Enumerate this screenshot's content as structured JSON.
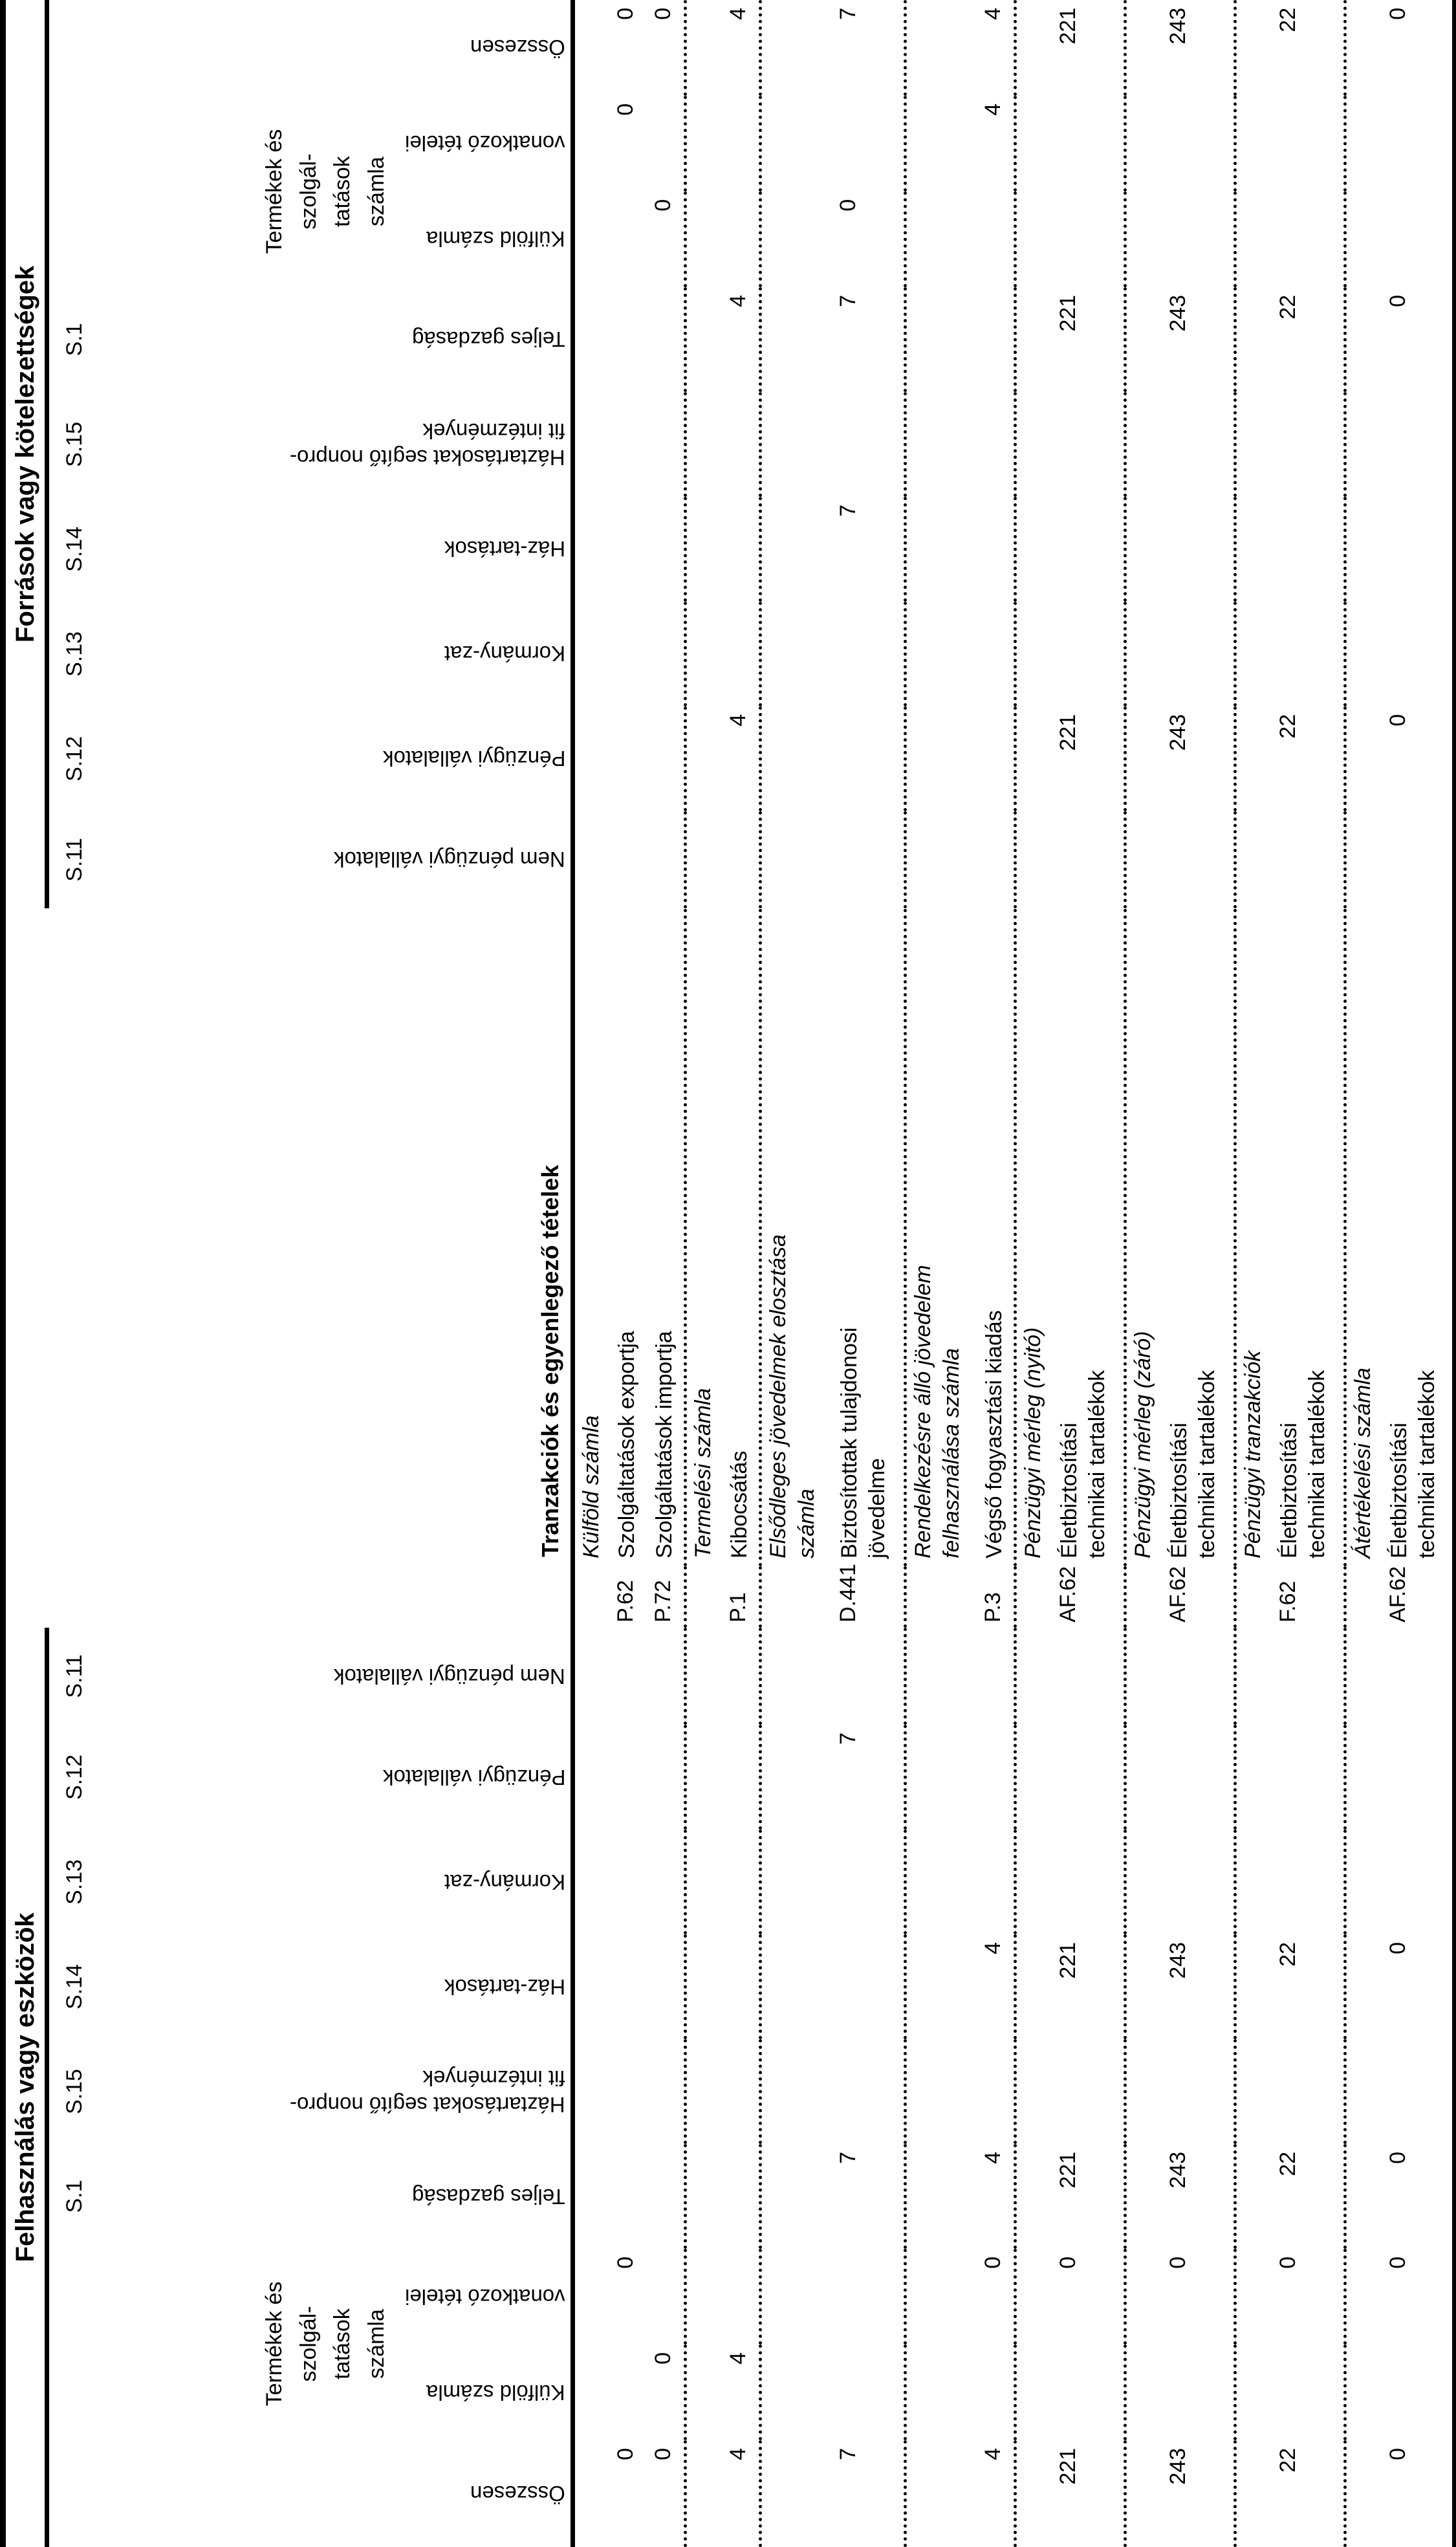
{
  "titles": {
    "uses": "Felhasználás vagy eszközök",
    "resources": "Források vagy kötelezettségek",
    "transactions": "Tranzakciók és egyenlegező tételek"
  },
  "product_account_block": "Termékek és\nszolgál-\ntatások\nszámla",
  "columns": {
    "uses_codes": [
      "",
      "",
      "",
      "S.1",
      "S.15",
      "S.14",
      "S.13",
      "S.12",
      "S.11"
    ],
    "res_codes": [
      "S.11",
      "S.12",
      "S.13",
      "S.14",
      "S.15",
      "S.1",
      "",
      "",
      ""
    ],
    "uses_labels": [
      "Összesen",
      "Külföld számla",
      "vonatkozó tételei",
      "Teljes gazdaság",
      "Háztartásokat segítő nonpro-\nfit intézmények",
      "Ház-tartások",
      "Kormány-zat",
      "Pénzügyi vállalatok",
      "Nem pénzügyi vállalatok"
    ],
    "res_labels": [
      "Nem pénzügyi vállalatok",
      "Pénzügyi vállalatok",
      "Kormány-zat",
      "Ház-tartások",
      "Háztartásokat segítő nonpro-\nfit intézmények",
      "Teljes gazdaság",
      "Külföld számla",
      "vonatkozó tételei",
      "Összesen"
    ]
  },
  "sections": [
    {
      "heading": "Külföld számla",
      "heading_lines": 1,
      "items": [
        {
          "code": "P.62",
          "name": "Szolgáltatások exportja",
          "lines": 1,
          "u": {
            "o": "0",
            "von": "0"
          },
          "r": {
            "von": "0",
            "o": "0"
          }
        },
        {
          "code": "P.72",
          "name": "Szolgáltatások importja",
          "lines": 1,
          "u": {
            "o": "0",
            "kul": "0"
          },
          "r": {
            "kul": "0",
            "o": "0"
          }
        }
      ]
    },
    {
      "heading": "Termelési számla",
      "heading_lines": 1,
      "items": [
        {
          "code": "P.1",
          "name": "Kibocsátás",
          "lines": 1,
          "u": {
            "o": "4",
            "kul": "4"
          },
          "r": {
            "s12": "4",
            "s1": "4",
            "o": "4"
          }
        }
      ]
    },
    {
      "heading": "Elsődleges jövedelmek elosztása\nszámla",
      "heading_lines": 2,
      "items": [
        {
          "code": "D.441",
          "name": "Biztosítottak tulajdonosi\njövedelme",
          "lines": 2,
          "u": {
            "o": "7",
            "s12": "7",
            "s1": "7"
          },
          "r": {
            "s14": "7",
            "s1": "7",
            "kul": "0",
            "o": "7"
          }
        }
      ]
    },
    {
      "heading": "Rendelkezésre álló jövedelem\nfelhasználása számla",
      "heading_lines": 2,
      "items": [
        {
          "code": "P.3",
          "name": "Végső fogyasztási kiadás",
          "lines": 1,
          "u": {
            "o": "4",
            "von": "0",
            "s14": "4",
            "s1": "4"
          },
          "r": {
            "von": "4",
            "o": "4"
          }
        }
      ]
    },
    {
      "heading": "Pénzügyi mérleg (nyitó)",
      "heading_lines": 1,
      "items": [
        {
          "code": "AF.62",
          "name": "Életbiztosítási\ntechnikai tartalékok",
          "lines": 2,
          "u": {
            "o": "221",
            "von": "0",
            "s14": "221",
            "s1": "221"
          },
          "r": {
            "s12": "221",
            "s1": "221",
            "o": "221"
          }
        }
      ]
    },
    {
      "heading": "Pénzügyi mérleg (záró)",
      "heading_lines": 1,
      "items": [
        {
          "code": "AF.62",
          "name": "Életbiztosítási\ntechnikai tartalékok",
          "lines": 2,
          "u": {
            "o": "243",
            "von": "0",
            "s14": "243",
            "s1": "243"
          },
          "r": {
            "s12": "243",
            "s1": "243",
            "o": "243"
          }
        }
      ]
    },
    {
      "heading": "Pénzügyi tranzakciók",
      "heading_lines": 1,
      "items": [
        {
          "code": "F.62",
          "name": "Életbiztosítási\ntechnikai tartalékok",
          "lines": 2,
          "u": {
            "o": "22",
            "von": "0",
            "s14": "22",
            "s1": "22"
          },
          "r": {
            "s12": "22",
            "s1": "22",
            "o": "22"
          }
        }
      ]
    },
    {
      "heading": "Átértékelési számla",
      "heading_lines": 1,
      "items": [
        {
          "code": "AF.62",
          "name": "Életbiztosítási\ntechnikai tartalékok",
          "lines": 2,
          "u": {
            "o": "0",
            "von": "0",
            "s14": "0",
            "s1": "0"
          },
          "r": {
            "s12": "0",
            "s1": "0",
            "o": "0"
          }
        }
      ]
    }
  ]
}
